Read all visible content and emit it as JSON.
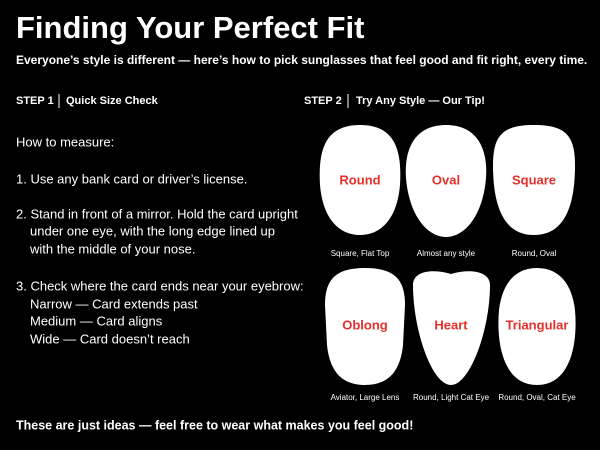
{
  "header": {
    "title": "Finding Your Perfect Fit",
    "subtitle": "Everyone’s style is different — here’s how to pick sunglasses that feel good and fit right, every time."
  },
  "step1": {
    "label": "STEP 1",
    "title": "Quick Size Check",
    "lines": [
      "How to measure:",
      "1. Use any bank card or driver’s license.",
      "2. Stand in front of a mirror. Hold the card upright",
      "under one eye, with the long edge lined up",
      "with the middle of your nose.",
      "3. Check where the card ends near your eyebrow:",
      "Narrow — Card extends past",
      "Medium — Card aligns",
      "Wide — Card doesn’t reach"
    ]
  },
  "step2": {
    "label": "STEP 2",
    "title": "Try Any Style — Our Tip!",
    "faces": [
      {
        "label": "Round",
        "caption": "Square, Flat Top"
      },
      {
        "label": "Oval",
        "caption": "Almost any style"
      },
      {
        "label": "Square",
        "caption": "Round, Oval"
      },
      {
        "label": "Oblong",
        "caption": "Aviator, Large Lens"
      },
      {
        "label": "Heart",
        "caption": "Round, Light Cat Eye"
      },
      {
        "label": "Triangular",
        "caption": "Round, Oval, Cat Eye"
      }
    ]
  },
  "footer": "These are just ideas — feel free to wear what makes you feel good!"
}
